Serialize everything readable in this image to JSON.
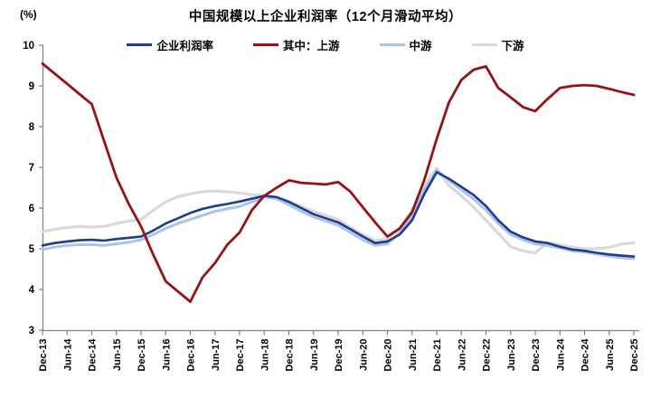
{
  "chart_data": {
    "type": "line",
    "title": "中国规模以上企业利润率（12个月滑动平均）",
    "unit_label": "(%)",
    "ylabel": "(%)",
    "ylim": [
      3,
      10
    ],
    "y_ticks": [
      3,
      4,
      5,
      6,
      7,
      8,
      9,
      10
    ],
    "grid": false,
    "legend_position": "top",
    "axis_color": "#7F7F7F",
    "text_color": "#000000",
    "x_tick_labels": [
      "Dec-13",
      "Jun-14",
      "Dec-14",
      "Jun-15",
      "Dec-15",
      "Jun-16",
      "Dec-16",
      "Jun-17",
      "Dec-17",
      "Jun-18",
      "Dec-18",
      "Jun-19",
      "Dec-19",
      "Jun-20",
      "Dec-20",
      "Jun-21",
      "Dec-21",
      "Jun-22",
      "Dec-22",
      "Jun-23",
      "Dec-23",
      "Jun-24",
      "Dec-24",
      "Jun-25",
      "Dec-25"
    ],
    "x_note": "series values are quarterly points from Dec-13 to Dec-25; axis labels mark every second point (6 months)",
    "series": [
      {
        "key": "profit-margin",
        "label": "企业利润率",
        "color": "#1F3A8F",
        "values": [
          5.08,
          5.14,
          5.18,
          5.21,
          5.22,
          5.2,
          5.24,
          5.27,
          5.3,
          5.45,
          5.62,
          5.75,
          5.88,
          5.98,
          6.05,
          6.1,
          6.16,
          6.23,
          6.3,
          6.27,
          6.15,
          6.0,
          5.85,
          5.75,
          5.65,
          5.48,
          5.3,
          5.14,
          5.18,
          5.35,
          5.7,
          6.35,
          6.88,
          6.72,
          6.52,
          6.32,
          6.05,
          5.7,
          5.42,
          5.28,
          5.18,
          5.14,
          5.05,
          4.98,
          4.95,
          4.9,
          4.86,
          4.83,
          4.81
        ]
      },
      {
        "key": "upstream",
        "label": "其中：上游",
        "color": "#971212",
        "values": [
          9.55,
          9.3,
          9.05,
          8.8,
          8.55,
          7.65,
          6.75,
          6.1,
          5.55,
          4.85,
          4.2,
          3.95,
          3.7,
          4.3,
          4.65,
          5.1,
          5.4,
          5.95,
          6.3,
          6.5,
          6.68,
          6.62,
          6.6,
          6.58,
          6.64,
          6.4,
          6.02,
          5.65,
          5.3,
          5.5,
          5.9,
          6.7,
          7.7,
          8.6,
          9.15,
          9.4,
          9.48,
          8.95,
          8.72,
          8.48,
          8.38,
          8.68,
          8.95,
          9.0,
          9.02,
          9.0,
          8.93,
          8.85,
          8.78
        ]
      },
      {
        "key": "midstream",
        "label": "中游",
        "color": "#A9C4E6",
        "values": [
          4.98,
          5.04,
          5.08,
          5.1,
          5.1,
          5.08,
          5.12,
          5.16,
          5.22,
          5.35,
          5.5,
          5.62,
          5.72,
          5.82,
          5.92,
          5.98,
          6.04,
          6.15,
          6.27,
          6.23,
          6.08,
          5.92,
          5.78,
          5.68,
          5.58,
          5.4,
          5.22,
          5.08,
          5.12,
          5.4,
          5.8,
          6.45,
          6.93,
          6.68,
          6.45,
          6.22,
          5.95,
          5.62,
          5.35,
          5.22,
          5.12,
          5.08,
          5.02,
          4.95,
          4.92,
          4.87,
          4.82,
          4.78,
          4.76
        ]
      },
      {
        "key": "downstream",
        "label": "下游",
        "color": "#D9D9D9",
        "values": [
          5.42,
          5.48,
          5.52,
          5.55,
          5.53,
          5.55,
          5.62,
          5.68,
          5.72,
          5.95,
          6.15,
          6.28,
          6.35,
          6.4,
          6.42,
          6.4,
          6.37,
          6.33,
          6.31,
          6.25,
          6.17,
          6.05,
          5.92,
          5.82,
          5.72,
          5.52,
          5.35,
          5.2,
          5.25,
          5.5,
          5.95,
          6.55,
          6.98,
          6.55,
          6.3,
          6.02,
          5.7,
          5.38,
          5.05,
          4.95,
          4.9,
          5.15,
          5.1,
          5.04,
          5.0,
          5.0,
          5.03,
          5.12,
          5.14
        ]
      }
    ]
  }
}
